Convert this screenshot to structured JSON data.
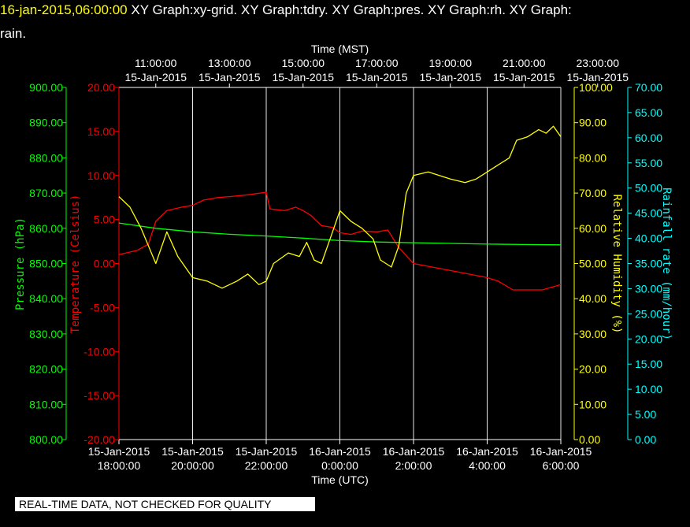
{
  "title": {
    "timestamp": "16-jan-2015,06:00:00",
    "line1_rest": " XY Graph:xy-grid.  XY Graph:tdry.  XY Graph:pres.  XY Graph:rh.  XY Graph:",
    "line2": "rain."
  },
  "banner": "REAL-TIME DATA, NOT CHECKED FOR QUALITY",
  "colors": {
    "background": "#000000",
    "pressure": "#00ff00",
    "temperature": "#ff0000",
    "humidity": "#ffff00",
    "rain": "#00ffff",
    "grid": "#ffffff"
  },
  "chart_data": {
    "type": "line",
    "x_top": {
      "label": "Time (MST)",
      "ticks": [
        {
          "time": "11:00:00",
          "date": "15-Jan-2015"
        },
        {
          "time": "13:00:00",
          "date": "15-Jan-2015"
        },
        {
          "time": "15:00:00",
          "date": "15-Jan-2015"
        },
        {
          "time": "17:00:00",
          "date": "15-Jan-2015"
        },
        {
          "time": "19:00:00",
          "date": "15-Jan-2015"
        },
        {
          "time": "21:00:00",
          "date": "15-Jan-2015"
        },
        {
          "time": "23:00:00",
          "date": "15-Jan-2015"
        }
      ]
    },
    "x_bottom": {
      "label": "Time (UTC)",
      "range": [
        "2015-01-15 18:00",
        "2015-01-16 06:00"
      ],
      "ticks": [
        {
          "date": "15-Jan-2015",
          "time": "18:00:00"
        },
        {
          "date": "15-Jan-2015",
          "time": "20:00:00"
        },
        {
          "date": "15-Jan-2015",
          "time": "22:00:00"
        },
        {
          "date": "16-Jan-2015",
          "time": "0:00:00"
        },
        {
          "date": "16-Jan-2015",
          "time": "2:00:00"
        },
        {
          "date": "16-Jan-2015",
          "time": "4:00:00"
        },
        {
          "date": "16-Jan-2015",
          "time": "6:00:00"
        }
      ]
    },
    "axes": {
      "pressure": {
        "label": "Pressure (hPa)",
        "ylim": [
          800,
          900
        ],
        "ticks": [
          "900.00",
          "890.00",
          "880.00",
          "870.00",
          "860.00",
          "850.00",
          "840.00",
          "830.00",
          "820.00",
          "810.00",
          "800.00"
        ]
      },
      "temperature": {
        "label": "Temperature (Celsius)",
        "ylim": [
          -20,
          20
        ],
        "ticks": [
          "20.00",
          "15.00",
          "10.00",
          "5.00",
          "0.00",
          "-5.00",
          "-10.00",
          "-15.00",
          "-20.00"
        ]
      },
      "humidity": {
        "label": "Relative Humidity (%)",
        "ylim": [
          0,
          100
        ],
        "ticks": [
          "100.00",
          "90.00",
          "80.00",
          "70.00",
          "60.00",
          "50.00",
          "40.00",
          "30.00",
          "20.00",
          "10.00",
          "0.00"
        ]
      },
      "rain": {
        "label": "Rainfall rate (mm/hour)",
        "ylim": [
          0,
          70
        ],
        "ticks": [
          "70.00",
          "65.00",
          "60.00",
          "55.00",
          "50.00",
          "45.00",
          "40.00",
          "35.00",
          "30.00",
          "25.00",
          "20.00",
          "15.00",
          "10.00",
          "5.00",
          "0.00"
        ]
      }
    },
    "grid": true,
    "series": [
      {
        "name": "tdry",
        "axis": "temperature",
        "color": "#ff0000",
        "points": [
          [
            18.0,
            1.0
          ],
          [
            18.5,
            1.5
          ],
          [
            18.8,
            2.2
          ],
          [
            19.0,
            4.8
          ],
          [
            19.3,
            6.0
          ],
          [
            19.7,
            6.4
          ],
          [
            20.0,
            6.6
          ],
          [
            20.3,
            7.2
          ],
          [
            20.7,
            7.5
          ],
          [
            21.0,
            7.6
          ],
          [
            21.5,
            7.8
          ],
          [
            22.0,
            8.1
          ],
          [
            22.1,
            6.2
          ],
          [
            22.5,
            6.0
          ],
          [
            22.8,
            6.4
          ],
          [
            23.0,
            6.0
          ],
          [
            23.2,
            5.5
          ],
          [
            23.5,
            4.3
          ],
          [
            23.8,
            4.1
          ],
          [
            24.0,
            3.5
          ],
          [
            24.3,
            3.3
          ],
          [
            24.6,
            3.7
          ],
          [
            25.0,
            3.6
          ],
          [
            25.3,
            3.8
          ],
          [
            25.6,
            1.8
          ],
          [
            26.0,
            0.0
          ],
          [
            26.5,
            -0.4
          ],
          [
            27.0,
            -0.8
          ],
          [
            27.5,
            -1.2
          ],
          [
            28.0,
            -1.6
          ],
          [
            28.3,
            -2.0
          ],
          [
            28.7,
            -3.0
          ],
          [
            29.0,
            -3.0
          ],
          [
            29.5,
            -3.0
          ],
          [
            30.0,
            -2.4
          ]
        ]
      },
      {
        "name": "pres",
        "axis": "pressure",
        "color": "#00ff00",
        "points": [
          [
            18.0,
            861.5
          ],
          [
            19.0,
            860.0
          ],
          [
            20.0,
            859.0
          ],
          [
            21.0,
            858.3
          ],
          [
            22.0,
            857.8
          ],
          [
            23.0,
            857.2
          ],
          [
            24.0,
            856.5
          ],
          [
            25.0,
            856.1
          ],
          [
            26.0,
            855.9
          ],
          [
            27.0,
            855.7
          ],
          [
            28.0,
            855.5
          ],
          [
            29.0,
            855.4
          ],
          [
            30.0,
            855.3
          ]
        ]
      },
      {
        "name": "rh",
        "axis": "humidity",
        "color": "#ffff00",
        "points": [
          [
            18.0,
            69.0
          ],
          [
            18.3,
            66.0
          ],
          [
            18.6,
            60.0
          ],
          [
            19.0,
            50.0
          ],
          [
            19.3,
            59.0
          ],
          [
            19.6,
            52.0
          ],
          [
            20.0,
            46.0
          ],
          [
            20.4,
            45.0
          ],
          [
            20.8,
            43.0
          ],
          [
            21.2,
            45.0
          ],
          [
            21.5,
            47.0
          ],
          [
            21.8,
            44.0
          ],
          [
            22.0,
            45.0
          ],
          [
            22.2,
            50.0
          ],
          [
            22.6,
            53.0
          ],
          [
            22.9,
            52.0
          ],
          [
            23.1,
            56.0
          ],
          [
            23.3,
            51.0
          ],
          [
            23.5,
            50.0
          ],
          [
            23.8,
            59.0
          ],
          [
            24.0,
            65.0
          ],
          [
            24.3,
            62.0
          ],
          [
            24.6,
            60.0
          ],
          [
            24.9,
            57.0
          ],
          [
            25.1,
            51.0
          ],
          [
            25.4,
            49.0
          ],
          [
            25.6,
            55.0
          ],
          [
            25.8,
            70.0
          ],
          [
            26.0,
            75.0
          ],
          [
            26.4,
            76.0
          ],
          [
            26.7,
            75.0
          ],
          [
            27.0,
            74.0
          ],
          [
            27.4,
            73.0
          ],
          [
            27.7,
            74.0
          ],
          [
            28.0,
            76.0
          ],
          [
            28.3,
            78.0
          ],
          [
            28.6,
            80.0
          ],
          [
            28.8,
            85.0
          ],
          [
            29.1,
            86.0
          ],
          [
            29.4,
            88.0
          ],
          [
            29.6,
            87.0
          ],
          [
            29.8,
            89.0
          ],
          [
            30.0,
            86.0
          ]
        ]
      }
    ]
  }
}
